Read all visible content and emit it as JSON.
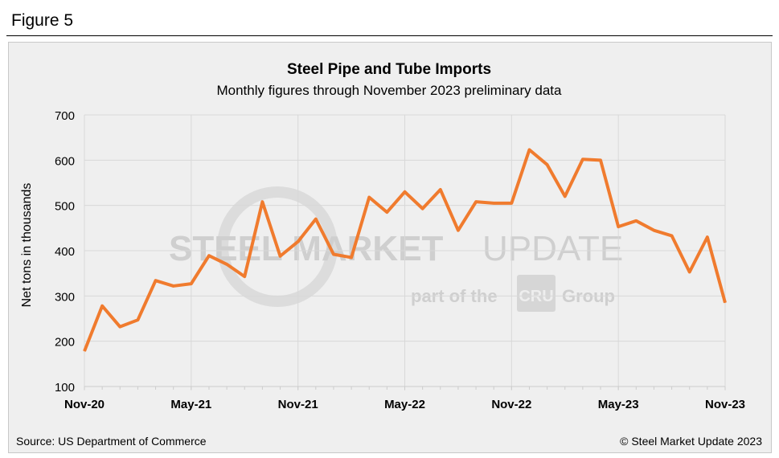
{
  "figure_label": "Figure 5",
  "chart_data": {
    "type": "line",
    "title": "Steel Pipe and Tube Imports",
    "subtitle": "Monthly figures through November 2023 preliminary data",
    "ylabel": "Net tons in thousands",
    "xlabel": "",
    "ylim": [
      100,
      700
    ],
    "yticks": [
      100,
      200,
      300,
      400,
      500,
      600,
      700
    ],
    "xtick_labels": [
      "Nov-20",
      "May-21",
      "Nov-21",
      "May-22",
      "Nov-22",
      "May-23",
      "Nov-23"
    ],
    "x": [
      "Nov-20",
      "Dec-20",
      "Jan-21",
      "Feb-21",
      "Mar-21",
      "Apr-21",
      "May-21",
      "Jun-21",
      "Jul-21",
      "Aug-21",
      "Sep-21",
      "Oct-21",
      "Nov-21",
      "Dec-21",
      "Jan-22",
      "Feb-22",
      "Mar-22",
      "Apr-22",
      "May-22",
      "Jun-22",
      "Jul-22",
      "Aug-22",
      "Sep-22",
      "Oct-22",
      "Nov-22",
      "Dec-22",
      "Jan-23",
      "Feb-23",
      "Mar-23",
      "Apr-23",
      "May-23",
      "Jun-23",
      "Jul-23",
      "Aug-23",
      "Sep-23",
      "Oct-23",
      "Nov-23"
    ],
    "series": [
      {
        "name": "Steel Pipe and Tube Imports",
        "color": "#f07b2e",
        "values": [
          178,
          278,
          232,
          247,
          334,
          322,
          327,
          389,
          370,
          343,
          508,
          388,
          420,
          470,
          392,
          385,
          518,
          485,
          530,
          493,
          535,
          445,
          508,
          505,
          505,
          623,
          590,
          520,
          602,
          600,
          453,
          466,
          445,
          433,
          353,
          430,
          285
        ]
      }
    ],
    "grid": true,
    "legend": "none"
  },
  "watermark": {
    "line1_bold": "STEEL MARKET",
    "line1_light": "UPDATE",
    "line2_a": "part of the",
    "line2_logo": "CRU",
    "line2_b": "Group"
  },
  "footer": {
    "source": "Source: US Department of Commerce",
    "copyright": "© Steel Market Update 2023"
  }
}
